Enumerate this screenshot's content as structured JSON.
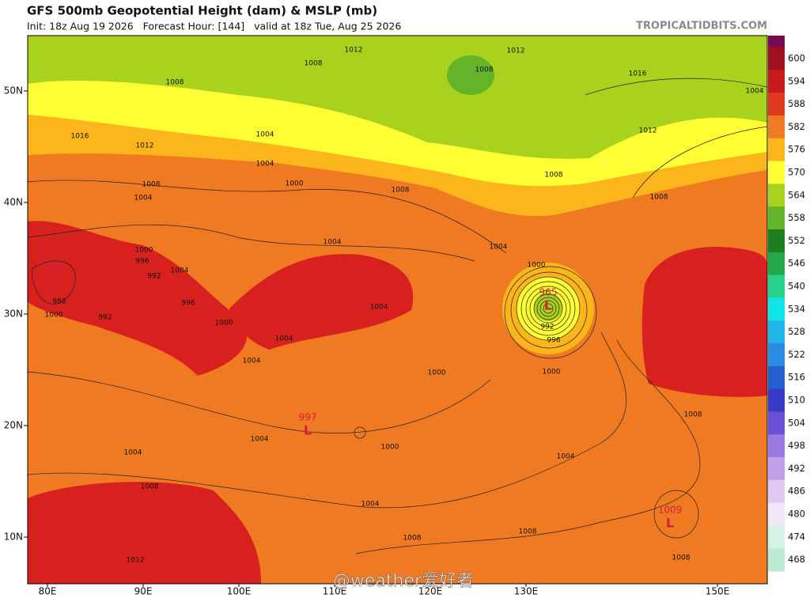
{
  "header": {
    "title": "GFS 500mb Geopotential Height (dam) & MSLP (mb)",
    "subtitle": "Init: 18z Aug 19 2026   Forecast Hour: [144]   valid at 18z Tue, Aug 25 2026",
    "credit": "TROPICALTIDBITS.COM"
  },
  "colorbar": [
    {
      "value": 600,
      "color": "#a0101e"
    },
    {
      "value": 594,
      "color": "#c81a1a"
    },
    {
      "value": 588,
      "color": "#e03a1e"
    },
    {
      "value": 582,
      "color": "#f07a22"
    },
    {
      "value": 576,
      "color": "#fcb51a"
    },
    {
      "value": 570,
      "color": "#ffff33"
    },
    {
      "value": 564,
      "color": "#a8d21e"
    },
    {
      "value": 558,
      "color": "#64b42a"
    },
    {
      "value": 552,
      "color": "#1e7d1e"
    },
    {
      "value": 546,
      "color": "#22a84a"
    },
    {
      "value": 540,
      "color": "#28d28c"
    },
    {
      "value": 534,
      "color": "#10e6e6"
    },
    {
      "value": 528,
      "color": "#20b4e8"
    },
    {
      "value": 522,
      "color": "#2a8ce0"
    },
    {
      "value": 516,
      "color": "#2460d0"
    },
    {
      "value": 510,
      "color": "#3a3ac8"
    },
    {
      "value": 504,
      "color": "#6a50d4"
    },
    {
      "value": 498,
      "color": "#9a7ae0"
    },
    {
      "value": 492,
      "color": "#c4a0ea"
    },
    {
      "value": 486,
      "color": "#e0c8f2"
    },
    {
      "value": 480,
      "color": "#f2e6fa"
    },
    {
      "value": 474,
      "color": "#d4f2e6"
    },
    {
      "value": 468,
      "color": "#bce8d6"
    }
  ],
  "lat_labels": [
    {
      "value": 50,
      "label": "50N"
    },
    {
      "value": 40,
      "label": "40N"
    },
    {
      "value": 30,
      "label": "30N"
    },
    {
      "value": 20,
      "label": "20N"
    },
    {
      "value": 10,
      "label": "10N"
    }
  ],
  "lon_labels": [
    {
      "value": 80,
      "label": "80E"
    },
    {
      "value": 90,
      "label": "90E"
    },
    {
      "value": 100,
      "label": "100E"
    },
    {
      "value": 110,
      "label": "110E"
    },
    {
      "value": 120,
      "label": "120E"
    },
    {
      "value": 130,
      "label": "130E"
    },
    {
      "value": 150,
      "label": "150E"
    }
  ],
  "isobar_labels": [
    1012,
    1008,
    1008,
    1012,
    1016,
    1004,
    1008,
    1016,
    1012,
    1004,
    1004,
    1000,
    1008,
    1008,
    1008,
    1012,
    1008,
    1004,
    1004,
    1000,
    996,
    992,
    1004,
    1004,
    996,
    988,
    992,
    1000,
    1000,
    1004,
    1004,
    1004,
    1000,
    992,
    996,
    1000,
    1000,
    1000,
    1004,
    1004,
    1008,
    1004,
    1004,
    1008,
    1008,
    1008,
    1012,
    1008
  ],
  "lows": [
    {
      "pressure": 990,
      "symbol": "L"
    },
    {
      "pressure": 965,
      "symbol": "L"
    },
    {
      "pressure": 997,
      "symbol": "L"
    },
    {
      "pressure": 1009,
      "symbol": "L"
    }
  ],
  "watermark": "@weather爱好者"
}
